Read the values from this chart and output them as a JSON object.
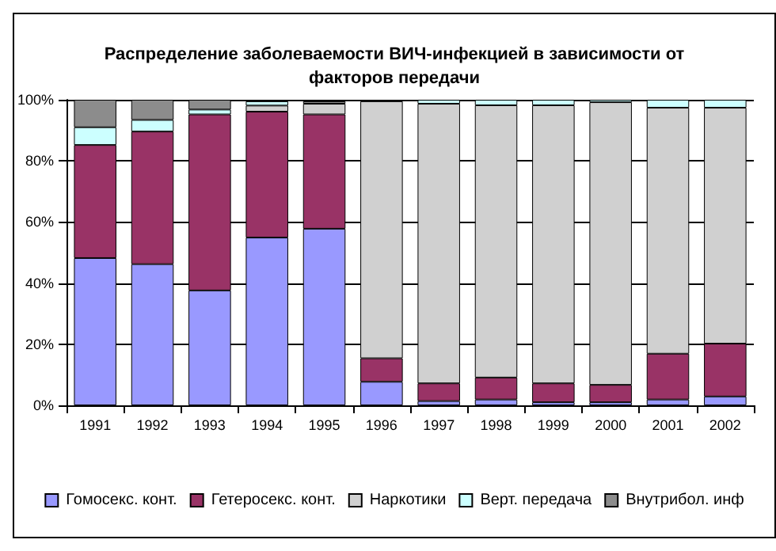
{
  "chart_data": {
    "type": "bar",
    "stacked": true,
    "title": "Распределение заболеваемости ВИЧ-инфекцией в зависимости от\nфакторов передачи",
    "categories": [
      "1991",
      "1992",
      "1993",
      "1994",
      "1995",
      "1996",
      "1997",
      "1998",
      "1999",
      "2000",
      "2001",
      "2002"
    ],
    "series": [
      {
        "name": "Гомосекс. конт.",
        "color": "#9999ff",
        "values": [
          48.2,
          46.2,
          37.6,
          54.9,
          57.8,
          7.7,
          1.4,
          1.9,
          1,
          1,
          1.9,
          2.9
        ]
      },
      {
        "name": "Гетеросекс. конт.",
        "color": "#993366",
        "values": [
          37,
          43.4,
          57.6,
          41.2,
          37.4,
          7.7,
          5.8,
          7.2,
          6.2,
          5.7,
          15,
          17.3
        ]
      },
      {
        "name": "Наркотики",
        "color": "#d0d0d0",
        "values": [
          null,
          null,
          null,
          2,
          3.5,
          84.1,
          91.5,
          89.1,
          91,
          92.5,
          80.5,
          77.2
        ]
      },
      {
        "name": "Верт. передача",
        "color": "#ccffff",
        "values": [
          5.8,
          3.8,
          1.6,
          1.4,
          null,
          null,
          1.3,
          1.8,
          1.8,
          0.8,
          2.6,
          2.6
        ]
      },
      {
        "name": "Внутрибол. инф",
        "color": "#8c8c8c",
        "values": [
          9,
          6.6,
          3.2,
          null,
          0.8,
          null,
          null,
          null,
          null,
          null,
          null,
          null
        ]
      }
    ],
    "ylim": [
      0,
      100
    ],
    "yticks": [
      {
        "value": 0,
        "label": "0%"
      },
      {
        "value": 20,
        "label": "20%"
      },
      {
        "value": 40,
        "label": "40%"
      },
      {
        "value": 60,
        "label": "60%"
      },
      {
        "value": 80,
        "label": "80%"
      },
      {
        "value": 100,
        "label": "100%"
      }
    ],
    "grid": "y",
    "legend": "bottom"
  }
}
